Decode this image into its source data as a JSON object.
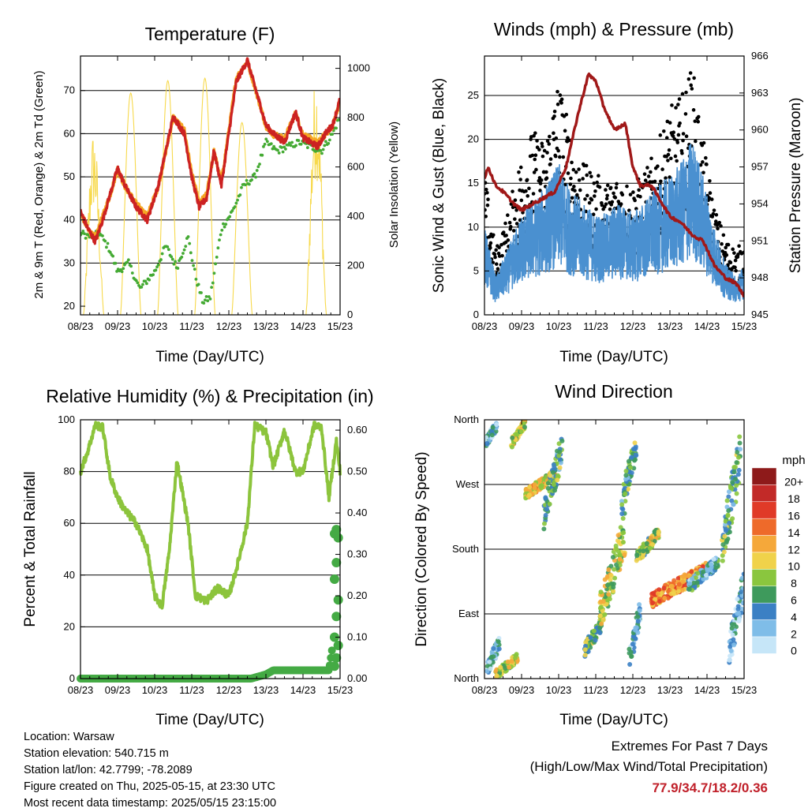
{
  "chart_data": [
    {
      "id": "temperature",
      "type": "line",
      "title": "Temperature (F)",
      "xlabel": "Time (Day/UTC)",
      "ylabel": "2m & 9m T (Red, Orange) & 2m Td (Green)",
      "ylabel_right": "Solar Insolation (Yellow)",
      "x_ticks": [
        "08/23",
        "09/23",
        "10/23",
        "11/23",
        "12/23",
        "13/23",
        "14/23",
        "15/23"
      ],
      "ylim": [
        18,
        78
      ],
      "y_ticks": [
        20,
        30,
        40,
        50,
        60,
        70
      ],
      "ylim_right": [
        0,
        1050
      ],
      "y_ticks_right": [
        0,
        200,
        400,
        600,
        800,
        1000
      ],
      "grid_y": [
        30,
        40,
        50,
        60,
        70
      ],
      "colors": {
        "t2m": "#cc2222",
        "t9m": "#f5a623",
        "td": "#44aa33",
        "solar": "#f7d94c"
      },
      "series": [
        {
          "key": "t2m",
          "x": [
            0,
            0.2,
            0.4,
            0.6,
            0.8,
            1.0,
            1.2,
            1.5,
            1.8,
            2.1,
            2.5,
            2.8,
            3.0,
            3.2,
            3.4,
            3.6,
            3.8,
            4.0,
            4.2,
            4.5,
            4.8,
            5.0,
            5.2,
            5.5,
            5.8,
            6.0,
            6.2,
            6.4,
            6.6,
            6.8,
            7.0
          ],
          "y": [
            42,
            38,
            35,
            40,
            46,
            52,
            48,
            43,
            40,
            48,
            64,
            60,
            50,
            43,
            45,
            56,
            48,
            60,
            72,
            77,
            68,
            62,
            60,
            58,
            65,
            59,
            58,
            57,
            60,
            62,
            68
          ]
        },
        {
          "key": "t9m",
          "x": [
            0,
            0.2,
            0.4,
            0.6,
            0.8,
            1.0,
            1.2,
            1.5,
            1.8,
            2.1,
            2.5,
            2.8,
            3.0,
            3.2,
            3.4,
            3.6,
            3.8,
            4.0,
            4.2,
            4.5,
            4.8,
            5.0,
            5.2,
            5.5,
            5.8,
            6.0,
            6.2,
            6.4,
            6.6,
            6.8,
            7.0
          ],
          "y": [
            41,
            37,
            35,
            40,
            45,
            51,
            47,
            43,
            40,
            47,
            63,
            60,
            50,
            43,
            45,
            55,
            48,
            60,
            72,
            76,
            67,
            61,
            59,
            58,
            64,
            59,
            58,
            57,
            59,
            61,
            67
          ]
        },
        {
          "key": "td",
          "x": [
            0,
            0.3,
            0.5,
            0.8,
            1.0,
            1.3,
            1.6,
            2.0,
            2.3,
            2.6,
            2.9,
            3.1,
            3.3,
            3.5,
            3.8,
            4.1,
            4.4,
            4.7,
            5.0,
            5.3,
            5.6,
            5.9,
            6.2,
            6.5,
            6.8,
            7.0
          ],
          "y": [
            37,
            36,
            37,
            33,
            28,
            30,
            24,
            28,
            34,
            29,
            36,
            27,
            21,
            22,
            38,
            42,
            48,
            50,
            58,
            56,
            57,
            58,
            57,
            56,
            60,
            64
          ]
        }
      ],
      "solar_days": [
        {
          "peak": 760
        },
        {
          "peak": 900
        },
        {
          "peak": 950
        },
        {
          "peak": 960
        },
        {
          "peak": 780
        },
        {
          "peak": 0
        },
        {
          "peak": 1000
        }
      ]
    },
    {
      "id": "winds",
      "type": "scatter",
      "title": "Winds (mph) & Pressure (mb)",
      "xlabel": "Time (Day/UTC)",
      "ylabel": "Sonic Wind & Gust (Blue, Black)",
      "ylabel_right": "Station Pressure (Maroon)",
      "x_ticks": [
        "08/23",
        "09/23",
        "10/23",
        "11/23",
        "12/23",
        "13/23",
        "14/23",
        "15/23"
      ],
      "ylim": [
        0,
        29.5
      ],
      "y_ticks": [
        0,
        5,
        10,
        15,
        20,
        25
      ],
      "ylim_right": [
        945,
        966
      ],
      "y_ticks_right": [
        945,
        948,
        951,
        954,
        957,
        960,
        963,
        966
      ],
      "grid_y": [
        5,
        10,
        15,
        20,
        25
      ],
      "colors": {
        "wind": "#4a90d0",
        "gust": "#000000",
        "pressure": "#a01818"
      },
      "series": [
        {
          "key": "wind",
          "x": [
            0,
            0.3,
            0.6,
            1.0,
            1.3,
            1.6,
            2.0,
            2.3,
            2.6,
            3.0,
            3.3,
            3.6,
            4.0,
            4.3,
            4.6,
            5.0,
            5.3,
            5.6,
            5.9,
            6.2,
            6.5,
            6.8,
            7.0
          ],
          "y": [
            7,
            3,
            5,
            8,
            9,
            10,
            12,
            10,
            9,
            8,
            8,
            9,
            8,
            9,
            10,
            11,
            12,
            14,
            11,
            7,
            4,
            3,
            4
          ]
        },
        {
          "key": "gust",
          "x": [
            0,
            0.3,
            0.6,
            1.0,
            1.3,
            1.6,
            2.0,
            2.3,
            2.6,
            3.0,
            3.3,
            3.6,
            4.0,
            4.3,
            4.6,
            5.0,
            5.3,
            5.6,
            5.9,
            6.2,
            6.5,
            6.8,
            7.0
          ],
          "y": [
            13,
            6,
            9,
            15,
            17,
            16,
            22,
            17,
            14,
            13,
            12,
            13,
            12,
            13,
            15,
            19,
            20,
            23,
            16,
            10,
            7,
            6,
            7
          ]
        },
        {
          "key": "pressure",
          "x": [
            0,
            0.1,
            0.3,
            0.5,
            0.8,
            1.0,
            1.3,
            1.6,
            1.9,
            2.2,
            2.5,
            2.8,
            3.0,
            3.2,
            3.5,
            3.8,
            4.0,
            4.2,
            4.5,
            4.8,
            5.0,
            5.3,
            5.6,
            5.9,
            6.2,
            6.5,
            6.8,
            7.0
          ],
          "y": [
            956,
            957,
            955.5,
            955,
            954,
            953.5,
            954,
            954.5,
            955,
            957,
            961,
            964.5,
            964,
            962,
            960,
            960.5,
            957,
            955.5,
            955.5,
            954,
            953,
            952.5,
            951.5,
            951,
            949,
            948,
            947.5,
            946.5
          ]
        }
      ]
    },
    {
      "id": "humidity",
      "type": "line",
      "title": "Relative Humidity (%) & Precipitation (in)",
      "xlabel": "Time (Day/UTC)",
      "ylabel": "Percent & Total Rainfall",
      "x_ticks": [
        "08/23",
        "09/23",
        "10/23",
        "11/23",
        "12/23",
        "13/23",
        "14/23",
        "15/23"
      ],
      "ylim": [
        0,
        100
      ],
      "y_ticks": [
        0,
        20,
        40,
        60,
        80,
        100
      ],
      "ylim_right": [
        0,
        0.625
      ],
      "y_ticks_right": [
        "0.00",
        "0.10",
        "0.20",
        "0.30",
        "0.40",
        "0.50",
        "0.60"
      ],
      "grid_y": [
        20,
        40,
        60,
        80
      ],
      "colors": {
        "rh": "#8cc43c",
        "precip": "#44aa44"
      },
      "series": [
        {
          "key": "rh",
          "x": [
            0,
            0.2,
            0.4,
            0.6,
            0.8,
            1.0,
            1.2,
            1.5,
            1.8,
            2.0,
            2.2,
            2.4,
            2.6,
            2.9,
            3.1,
            3.4,
            3.7,
            4.0,
            4.2,
            4.5,
            4.7,
            5.0,
            5.2,
            5.5,
            5.8,
            6.0,
            6.3,
            6.5,
            6.7,
            6.9,
            7.0
          ],
          "y": [
            80,
            88,
            98,
            97,
            78,
            70,
            65,
            60,
            50,
            32,
            28,
            50,
            84,
            60,
            32,
            30,
            35,
            32,
            42,
            60,
            98,
            95,
            82,
            96,
            80,
            80,
            98,
            97,
            70,
            92,
            80
          ]
        },
        {
          "key": "precip",
          "x": [
            0,
            4.6,
            5.0,
            5.2,
            6.0,
            6.5,
            6.7,
            6.8,
            6.9,
            7.0
          ],
          "y": [
            0,
            0,
            0.01,
            0.02,
            0.02,
            0.02,
            0.02,
            0.08,
            0.2,
            0.36
          ]
        }
      ]
    },
    {
      "id": "wind_direction",
      "type": "scatter",
      "title": "Wind Direction",
      "xlabel": "Time (Day/UTC)",
      "ylabel": "Direction (Colored By Speed)",
      "x_ticks": [
        "08/23",
        "09/23",
        "10/23",
        "11/23",
        "12/23",
        "13/23",
        "14/23",
        "15/23"
      ],
      "y_ticks": [
        "North",
        "East",
        "South",
        "West",
        "North"
      ],
      "ylim": [
        0,
        360
      ],
      "grid_y": [
        90,
        180,
        270
      ],
      "legend": {
        "title": "mph",
        "labels": [
          "0",
          "2",
          "4",
          "6",
          "8",
          "10",
          "12",
          "14",
          "16",
          "18",
          "20+"
        ],
        "colors": [
          "#c6e6f8",
          "#7fbde8",
          "#3b80c4",
          "#3e9a5c",
          "#8ac63e",
          "#f0d24a",
          "#f5a83a",
          "#ee6a2a",
          "#e03a28",
          "#c22a28",
          "#8e1a1a"
        ]
      },
      "clusters": [
        {
          "x0": 0.0,
          "x1": 0.35,
          "y0": 320,
          "y1": 360,
          "speed": 3
        },
        {
          "x0": 0.05,
          "x1": 0.4,
          "y0": 0,
          "y1": 60,
          "speed": 3
        },
        {
          "x0": 0.3,
          "x1": 0.9,
          "y0": 0,
          "y1": 35,
          "speed": 9
        },
        {
          "x0": 0.7,
          "x1": 1.1,
          "y0": 320,
          "y1": 360,
          "speed": 9
        },
        {
          "x0": 1.1,
          "x1": 1.9,
          "y0": 250,
          "y1": 290,
          "speed": 10
        },
        {
          "x0": 1.6,
          "x1": 2.1,
          "y0": 210,
          "y1": 340,
          "speed": 6
        },
        {
          "x0": 2.7,
          "x1": 3.2,
          "y0": 30,
          "y1": 90,
          "speed": 7
        },
        {
          "x0": 3.1,
          "x1": 3.8,
          "y0": 60,
          "y1": 230,
          "speed": 9
        },
        {
          "x0": 3.7,
          "x1": 4.1,
          "y0": 230,
          "y1": 340,
          "speed": 6
        },
        {
          "x0": 3.9,
          "x1": 4.2,
          "y0": 10,
          "y1": 110,
          "speed": 4
        },
        {
          "x0": 4.1,
          "x1": 4.7,
          "y0": 160,
          "y1": 210,
          "speed": 8
        },
        {
          "x0": 4.5,
          "x1": 6.0,
          "y0": 100,
          "y1": 160,
          "speed": 13
        },
        {
          "x0": 5.5,
          "x1": 6.3,
          "y0": 120,
          "y1": 170,
          "speed": 4
        },
        {
          "x0": 6.4,
          "x1": 6.9,
          "y0": 150,
          "y1": 340,
          "speed": 6
        },
        {
          "x0": 6.6,
          "x1": 7.0,
          "y0": 20,
          "y1": 150,
          "speed": 3
        }
      ]
    }
  ],
  "info": {
    "location": "Location: Warsaw",
    "elevation": "Station elevation: 540.715 m",
    "latlon": "Station lat/lon: 42.7799; -78.2089",
    "created": "Figure created on Thu, 2025-05-15, at 23:30 UTC",
    "recent": "Most recent data timestamp: 2025/05/15 23:15:00"
  },
  "extremes": {
    "line1": "Extremes For Past 7 Days",
    "line2": "(High/Low/Max Wind/Total Precipitation)",
    "values": "77.9/34.7/18.2/0.36"
  }
}
